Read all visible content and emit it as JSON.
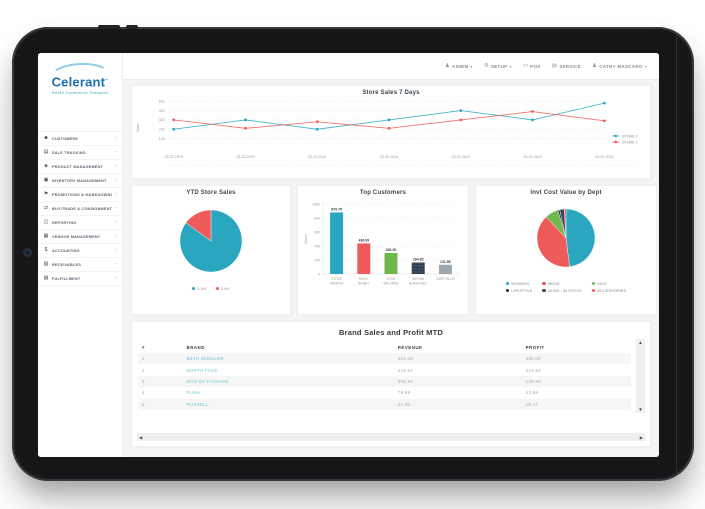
{
  "brand": {
    "logo_text": "Celerant",
    "logo_tm": "™",
    "logo_tagline": "Retail Commerce Software"
  },
  "sidebar": {
    "items": [
      {
        "label": "CUSTOMERS",
        "icon": "customers-icon",
        "glyph": "☻"
      },
      {
        "label": "SALE TRACKING",
        "icon": "sale-tracking-icon",
        "glyph": "▤"
      },
      {
        "label": "PRODUCT MANAGEMENT",
        "icon": "product-tag-icon",
        "glyph": "◈"
      },
      {
        "label": "INVENTORY MANAGEMENT",
        "icon": "inventory-box-icon",
        "glyph": "▣"
      },
      {
        "label": "PROMOTIONS & MARKDOWNS",
        "icon": "promotions-icon",
        "glyph": "⚑"
      },
      {
        "label": "BUY/TRADE & CONSIGNMENT",
        "icon": "buy-trade-icon",
        "glyph": "⇄"
      },
      {
        "label": "REPORTING",
        "icon": "reporting-chart-icon",
        "glyph": "◫"
      },
      {
        "label": "VENDOR MANAGEMENT",
        "icon": "vendor-icon",
        "glyph": "▦"
      },
      {
        "label": "ACCOUNTING",
        "icon": "dollar-icon",
        "glyph": "$"
      },
      {
        "label": "RECEIVABLES",
        "icon": "receivables-icon",
        "glyph": "▧"
      },
      {
        "label": "FULFILLMENT",
        "icon": "fulfillment-icon",
        "glyph": "▨"
      }
    ]
  },
  "topnav": {
    "items": [
      {
        "label": "ADMIN",
        "icon": "admin-user-icon",
        "glyph": "♟",
        "caret": true
      },
      {
        "label": "SETUP",
        "icon": "gear-icon",
        "glyph": "⚙",
        "caret": true
      },
      {
        "label": "POS",
        "icon": "pos-terminal-icon",
        "glyph": "▭",
        "caret": false
      },
      {
        "label": "SERVICE",
        "icon": "service-monitor-icon",
        "glyph": "▤",
        "caret": false
      },
      {
        "label": "CATHY MASCARO",
        "icon": "user-icon",
        "glyph": "♟",
        "caret": true
      }
    ]
  },
  "chart_data": [
    {
      "id": "store_sales_7_days",
      "type": "line",
      "title": "Store Sales 7 Days",
      "ylabel": "Sales",
      "x": [
        "03-27-2015",
        "03-28-2015",
        "03-29-2015",
        "03-30-2015",
        "03-31-2015",
        "04-01-2015",
        "04-02-2015"
      ],
      "ylim": [
        0,
        500
      ],
      "yticks": [
        100,
        200,
        300,
        400,
        500
      ],
      "grid": true,
      "legend_position": "right",
      "series": [
        {
          "name": "STORE 2",
          "color": "#2aa7bf",
          "values": [
            200,
            300,
            200,
            300,
            400,
            300,
            480
          ]
        },
        {
          "name": "STORE 1",
          "color": "#ef5a5a",
          "values": [
            300,
            210,
            280,
            210,
            300,
            390,
            290
          ]
        }
      ]
    },
    {
      "id": "ytd_store_sales",
      "type": "pie",
      "title": "YTD Store Sales",
      "slices": [
        {
          "label": "1-NY",
          "value": 85,
          "color": "#2aa7bf"
        },
        {
          "label": "2-NY",
          "value": 15,
          "color": "#ef5a5a"
        }
      ],
      "legend_position": "bottom"
    },
    {
      "id": "top_customers",
      "type": "bar",
      "title": "Top Customers",
      "ylabel": "Values",
      "ylim": [
        0,
        1000
      ],
      "yticks": [
        0,
        200,
        400,
        600,
        800,
        1000
      ],
      "grid": true,
      "categories": [
        "STEVE HEDRON",
        "RICKY BOBBY",
        "STAN WILLIAMS",
        "SIERRA BURGUNDY",
        "GARY ELLIS"
      ],
      "values": [
        879.75,
        436.99,
        300.0,
        164.85,
        131.85
      ],
      "value_labels": [
        "879.75",
        "436.99",
        "300.00",
        "164.85",
        "131.85"
      ],
      "colors": [
        "#2aa7bf",
        "#ef5a5a",
        "#70b74e",
        "#2d3e50",
        "#97a2aa"
      ],
      "patterned": [
        false,
        false,
        false,
        true,
        true
      ]
    },
    {
      "id": "invt_cost_value_by_dept",
      "type": "pie",
      "title": "Invt Cost Value by Dept",
      "slices": [
        {
          "label": "WOMENS",
          "value": 48,
          "color": "#2aa7bf"
        },
        {
          "label": "MENS",
          "value": 40,
          "color": "#ef5a5a"
        },
        {
          "label": "KIDS",
          "value": 7.5,
          "color": "#70b74e"
        },
        {
          "label": "LIFESTYLE",
          "value": 1,
          "color": "#1f2d3a"
        },
        {
          "label": "GUNS - IN STOCK",
          "value": 2.5,
          "color": "#34495e"
        },
        {
          "label": "ACCESSORIES",
          "value": 1,
          "color": "#ef5a5a"
        }
      ],
      "legend_position": "bottom",
      "legend_order": [
        "WOMENS",
        "MENS",
        "KIDS",
        "LIFESTYLE",
        "GUNS - IN STOCK",
        "ACCESSORIES"
      ]
    }
  ],
  "table": {
    "title": "Brand Sales and Profit MTD",
    "columns": [
      "#",
      "BRAND",
      "REVENUE",
      "PROFIT"
    ],
    "rows": [
      [
        "1",
        "BETH MUELLER",
        "410.00",
        "325.00"
      ],
      [
        "2",
        "NORTH FACE",
        "444.54",
        "215.54"
      ],
      [
        "3",
        "MAN OF FASHION",
        "308.54",
        "149.59"
      ],
      [
        "4",
        "PUMA",
        "79.99",
        "43.99"
      ],
      [
        "5",
        "RUSSELL",
        "42.00",
        "19.27"
      ]
    ],
    "scroll": {
      "up": "▲",
      "down": "▼",
      "left": "◀",
      "right": "▶"
    }
  }
}
